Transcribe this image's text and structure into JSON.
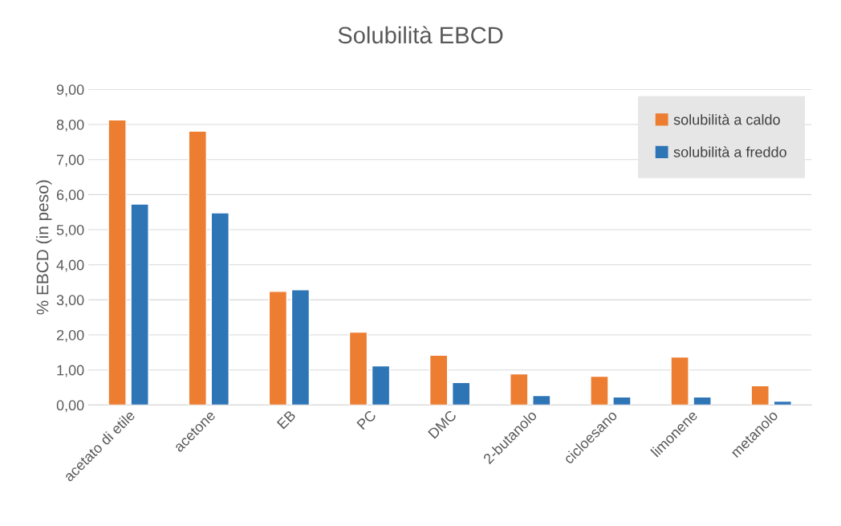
{
  "chart_data": {
    "type": "bar",
    "title": "Solubilità EBCD",
    "ylabel": "% EBCD (in peso)",
    "categories": [
      "acetato di etile",
      "acetone",
      "EB",
      "PC",
      "DMC",
      "2-butanolo",
      "cicloesano",
      "limonene",
      "metanolo"
    ],
    "series": [
      {
        "name": "solubilità a caldo",
        "color": "#ed7d31",
        "values": [
          8.13,
          7.81,
          3.24,
          2.08,
          1.42,
          0.89,
          0.82,
          1.37,
          0.55
        ]
      },
      {
        "name": "solubilità a freddo",
        "color": "#2e75b6",
        "values": [
          5.73,
          5.48,
          3.29,
          1.12,
          0.64,
          0.27,
          0.23,
          0.23,
          0.11
        ]
      }
    ],
    "ylim": [
      0,
      9
    ],
    "yticks": [
      {
        "value": 0,
        "label": "0,00"
      },
      {
        "value": 1,
        "label": "1,00"
      },
      {
        "value": 2,
        "label": "2,00"
      },
      {
        "value": 3,
        "label": "3,00"
      },
      {
        "value": 4,
        "label": "4,00"
      },
      {
        "value": 5,
        "label": "5,00"
      },
      {
        "value": 6,
        "label": "6,00"
      },
      {
        "value": 7,
        "label": "7,00"
      },
      {
        "value": 8,
        "label": "8,00"
      },
      {
        "value": 9,
        "label": "9,00"
      }
    ],
    "grid": "y",
    "legend": "top right"
  }
}
